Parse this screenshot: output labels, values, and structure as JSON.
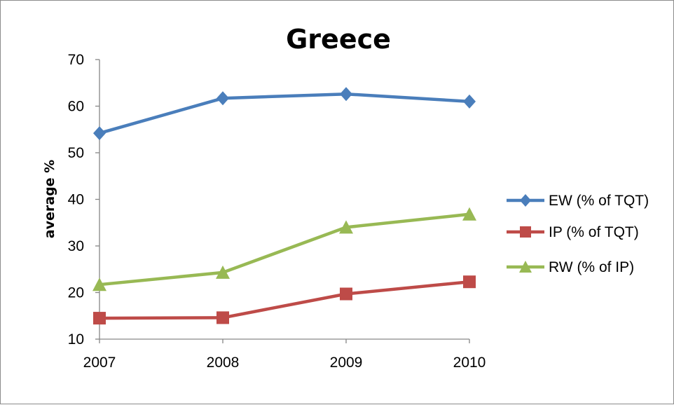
{
  "chart_data": {
    "type": "line",
    "title": "Greece",
    "xlabel": "",
    "ylabel": "average %",
    "x": [
      "2007",
      "2008",
      "2009",
      "2010"
    ],
    "ylim": [
      10,
      70
    ],
    "yticks": [
      10,
      20,
      30,
      40,
      50,
      60,
      70
    ],
    "grid": false,
    "legend_position": "right",
    "series": [
      {
        "name": "EW (% of TQT)",
        "values": [
          54.2,
          61.7,
          62.6,
          61.0
        ],
        "color": "#4a7ebb",
        "marker": "diamond"
      },
      {
        "name": "IP (% of TQT)",
        "values": [
          14.5,
          14.6,
          19.7,
          22.3
        ],
        "color": "#be4b48",
        "marker": "square"
      },
      {
        "name": "RW (% of IP)",
        "values": [
          21.7,
          24.3,
          34.0,
          36.8
        ],
        "color": "#98b954",
        "marker": "triangle"
      }
    ]
  }
}
